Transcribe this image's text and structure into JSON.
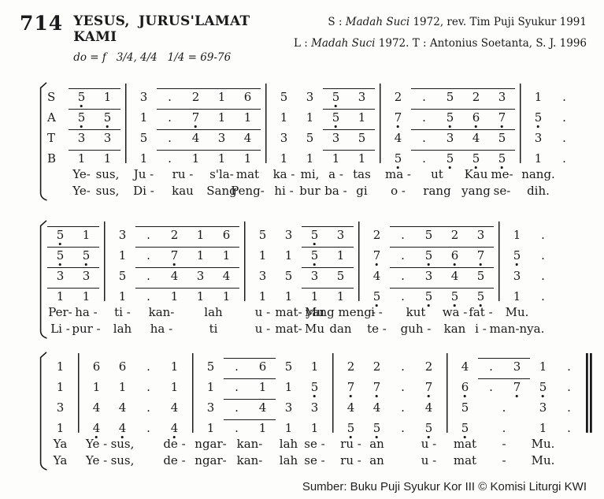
{
  "header": {
    "number": "714",
    "title": "YESUS, JURUS'LAMAT KAMI",
    "key_line": "do = f   3/4, 4/4   1/4 = 69-76"
  },
  "credits": [
    {
      "prefix": "S : ",
      "source": "Madah Suci",
      "rest": " 1972, rev. Tim Puji Syukur 1991"
    },
    {
      "prefix": "L : ",
      "source": "Madah Suci",
      "rest": " 1972. T : Antonius Soetanta, S. J. 1996"
    }
  ],
  "footer": {
    "text": "Sumber: Buku Puji Syukur Kor III © Komisi Liturgi KWI"
  },
  "notation_legend": {
    "low_octave_marker": "dot below number (encoded with trailing _)",
    "beam": "overline across grouped tokens (encoded as array)",
    "barline": "|",
    "final_barline": "||"
  },
  "systems": [
    {
      "labels": [
        "S",
        "A",
        "T",
        "B"
      ],
      "voices": [
        [
          [
            "5_",
            "1"
          ],
          "|",
          "3",
          [
            ".",
            "2"
          ],
          [
            "1",
            "6"
          ],
          "|",
          "5",
          "3",
          [
            "5_",
            "3"
          ],
          "|",
          "2",
          [
            ".",
            "5"
          ],
          [
            "2",
            "3"
          ],
          "|",
          "1",
          "."
        ],
        [
          [
            "5_",
            "5_"
          ],
          "|",
          "1",
          [
            ".",
            "7_"
          ],
          [
            "1",
            "1"
          ],
          "|",
          "1",
          "1",
          [
            "5_",
            "1"
          ],
          "|",
          "7_",
          [
            ".",
            "5_"
          ],
          [
            "6_",
            "7_"
          ],
          "|",
          "5_",
          "."
        ],
        [
          [
            "3",
            "3"
          ],
          "|",
          "5",
          [
            ".",
            "4"
          ],
          [
            "3",
            "4"
          ],
          "|",
          "3",
          "5",
          [
            "3",
            "5"
          ],
          "|",
          "4",
          [
            ".",
            "3"
          ],
          [
            "4",
            "5"
          ],
          "|",
          "3",
          "."
        ],
        [
          [
            "1",
            "1"
          ],
          "|",
          "1",
          [
            ".",
            "1"
          ],
          [
            "1",
            "1"
          ],
          "|",
          "1",
          "1",
          [
            "1",
            "1"
          ],
          "|",
          "5_",
          [
            ".",
            "5_"
          ],
          [
            "5_",
            "5_"
          ],
          "|",
          "1",
          "."
        ]
      ],
      "lyrics": [
        [
          {
            "i": 0,
            "t": "Ye-"
          },
          {
            "i": 1,
            "t": "sus,"
          },
          {
            "i": 2,
            "t": "Ju -"
          },
          {
            "i": 3,
            "t": "ru -",
            "span": 2
          },
          {
            "i": 5,
            "t": "s'la-"
          },
          {
            "i": 6,
            "t": "mat"
          },
          {
            "i": 7,
            "t": "ka -"
          },
          {
            "i": 8,
            "t": "mi,"
          },
          {
            "i": 9,
            "t": "a -"
          },
          {
            "i": 10,
            "t": "tas"
          },
          {
            "i": 11,
            "t": "ma -"
          },
          {
            "i": 12,
            "t": "ut",
            "span": 2
          },
          {
            "i": 14,
            "t": "Kau"
          },
          {
            "i": 15,
            "t": "me-"
          },
          {
            "i": 16,
            "t": "nang."
          }
        ],
        [
          {
            "i": 0,
            "t": "Ye-"
          },
          {
            "i": 1,
            "t": "sus,"
          },
          {
            "i": 2,
            "t": "Di -"
          },
          {
            "i": 3,
            "t": "kau",
            "span": 2
          },
          {
            "i": 5,
            "t": "Sang"
          },
          {
            "i": 6,
            "t": "Peng-"
          },
          {
            "i": 7,
            "t": "hi -"
          },
          {
            "i": 8,
            "t": "bur"
          },
          {
            "i": 9,
            "t": "ba -"
          },
          {
            "i": 10,
            "t": "gi"
          },
          {
            "i": 11,
            "t": "o -"
          },
          {
            "i": 12,
            "t": "rang",
            "span": 2
          },
          {
            "i": 14,
            "t": "yang"
          },
          {
            "i": 15,
            "t": "se-"
          },
          {
            "i": 16,
            "t": "dih."
          }
        ]
      ]
    },
    {
      "labels": null,
      "voices": [
        [
          [
            "5_",
            "1"
          ],
          "|",
          "3",
          [
            ".",
            "2"
          ],
          [
            "1",
            "6"
          ],
          "|",
          "5",
          "3",
          [
            "5_",
            "3"
          ],
          "|",
          "2",
          [
            ".",
            "5"
          ],
          [
            "2",
            "3"
          ],
          "|",
          "1",
          "."
        ],
        [
          [
            "5_",
            "5_"
          ],
          "|",
          "1",
          [
            ".",
            "7_"
          ],
          [
            "1",
            "1"
          ],
          "|",
          "1",
          "1",
          [
            "5_",
            "1"
          ],
          "|",
          "7_",
          [
            ".",
            "5_"
          ],
          [
            "6_",
            "7_"
          ],
          "|",
          "5_",
          "."
        ],
        [
          [
            "3",
            "3"
          ],
          "|",
          "5",
          [
            ".",
            "4"
          ],
          [
            "3",
            "4"
          ],
          "|",
          "3",
          "5",
          [
            "3",
            "5"
          ],
          "|",
          "4",
          [
            ".",
            "3"
          ],
          [
            "4",
            "5"
          ],
          "|",
          "3",
          "."
        ],
        [
          [
            "1",
            "1"
          ],
          "|",
          "1",
          [
            ".",
            "1"
          ],
          [
            "1",
            "1"
          ],
          "|",
          "1",
          "1",
          [
            "1",
            "1"
          ],
          "|",
          "5_",
          [
            ".",
            "5_"
          ],
          [
            "5_",
            "5_"
          ],
          "|",
          "1",
          "."
        ]
      ],
      "lyrics": [
        [
          {
            "i": 0,
            "t": "Per-"
          },
          {
            "i": 1,
            "t": "ha -"
          },
          {
            "i": 2,
            "t": "ti -"
          },
          {
            "i": 3,
            "t": "kan-",
            "span": 2
          },
          {
            "i": 5,
            "t": "lah",
            "span": 2
          },
          {
            "i": 7,
            "t": "u -"
          },
          {
            "i": 8,
            "t": "mat-"
          },
          {
            "i": 9,
            "t": "Mu"
          },
          {
            "i": 10,
            "t": "yang meng-"
          },
          {
            "i": 11,
            "t": "i -"
          },
          {
            "i": 12,
            "t": "kut",
            "span": 2
          },
          {
            "i": 14,
            "t": "wa -"
          },
          {
            "i": 15,
            "t": "fat -"
          },
          {
            "i": 16,
            "t": "Mu."
          }
        ],
        [
          {
            "i": 0,
            "t": "Li -"
          },
          {
            "i": 1,
            "t": "pur -"
          },
          {
            "i": 2,
            "t": "lah"
          },
          {
            "i": 3,
            "t": "ha -",
            "span": 2
          },
          {
            "i": 5,
            "t": "ti",
            "span": 2
          },
          {
            "i": 7,
            "t": "u -"
          },
          {
            "i": 8,
            "t": "mat-"
          },
          {
            "i": 9,
            "t": "Mu"
          },
          {
            "i": 10,
            "t": "dan"
          },
          {
            "i": 11,
            "t": "te -"
          },
          {
            "i": 12,
            "t": "guh -",
            "span": 2
          },
          {
            "i": 14,
            "t": "kan"
          },
          {
            "i": 15,
            "t": "i -"
          },
          {
            "i": 16,
            "t": "man-nya."
          }
        ]
      ]
    },
    {
      "labels": null,
      "voices": [
        [
          "1",
          "|",
          "6",
          "6",
          ".",
          "1",
          "|",
          "5",
          [
            ".",
            "6"
          ],
          "5",
          "1",
          "|",
          "2",
          "2",
          ".",
          "2",
          "|",
          "4",
          [
            ".",
            "3"
          ],
          "1",
          ".",
          "||"
        ],
        [
          "1",
          "|",
          "1",
          "1",
          ".",
          "1",
          "|",
          "1",
          [
            ".",
            "1"
          ],
          "1",
          "5_",
          "|",
          "7_",
          "7_",
          ".",
          "7_",
          "|",
          "6_",
          [
            ".",
            "7_"
          ],
          "5_",
          ".",
          "||"
        ],
        [
          "3",
          "|",
          "4",
          "4",
          ".",
          "4",
          "|",
          "3",
          [
            ".",
            "4"
          ],
          "3",
          "3",
          "|",
          "4",
          "4",
          ".",
          "4",
          "|",
          "5",
          {
            "t": ".",
            "span": 2
          },
          "3",
          ".",
          "||"
        ],
        [
          "1",
          "|",
          "4_",
          "4_",
          ".",
          "4_",
          "|",
          "1",
          [
            ".",
            "1"
          ],
          "1",
          "1",
          "|",
          "5_",
          "5_",
          ".",
          "5_",
          "|",
          "5_",
          {
            "t": ".",
            "span": 2
          },
          "1",
          ".",
          "||"
        ]
      ],
      "lyrics": [
        [
          {
            "i": 0,
            "t": "Ya"
          },
          {
            "i": 1,
            "t": "Ye -"
          },
          {
            "i": 2,
            "t": "sus,"
          },
          {
            "i": 4,
            "t": "de -"
          },
          {
            "i": 5,
            "t": "ngar-"
          },
          {
            "i": 6,
            "t": "kan-",
            "span": 2
          },
          {
            "i": 8,
            "t": "lah"
          },
          {
            "i": 9,
            "t": "se -"
          },
          {
            "i": 10,
            "t": "ru -"
          },
          {
            "i": 11,
            "t": "an"
          },
          {
            "i": 13,
            "t": "u -"
          },
          {
            "i": 14,
            "t": "mat"
          },
          {
            "i": 15,
            "t": "-",
            "span": 2
          },
          {
            "i": 17,
            "t": "Mu."
          }
        ],
        [
          {
            "i": 0,
            "t": "Ya"
          },
          {
            "i": 1,
            "t": "Ye -"
          },
          {
            "i": 2,
            "t": "sus,"
          },
          {
            "i": 4,
            "t": "de -"
          },
          {
            "i": 5,
            "t": "ngar-"
          },
          {
            "i": 6,
            "t": "kan-",
            "span": 2
          },
          {
            "i": 8,
            "t": "lah"
          },
          {
            "i": 9,
            "t": "se -"
          },
          {
            "i": 10,
            "t": "ru -"
          },
          {
            "i": 11,
            "t": "an"
          },
          {
            "i": 13,
            "t": "u -"
          },
          {
            "i": 14,
            "t": "mat"
          },
          {
            "i": 15,
            "t": "-",
            "span": 2
          },
          {
            "i": 17,
            "t": "Mu."
          }
        ]
      ]
    }
  ]
}
